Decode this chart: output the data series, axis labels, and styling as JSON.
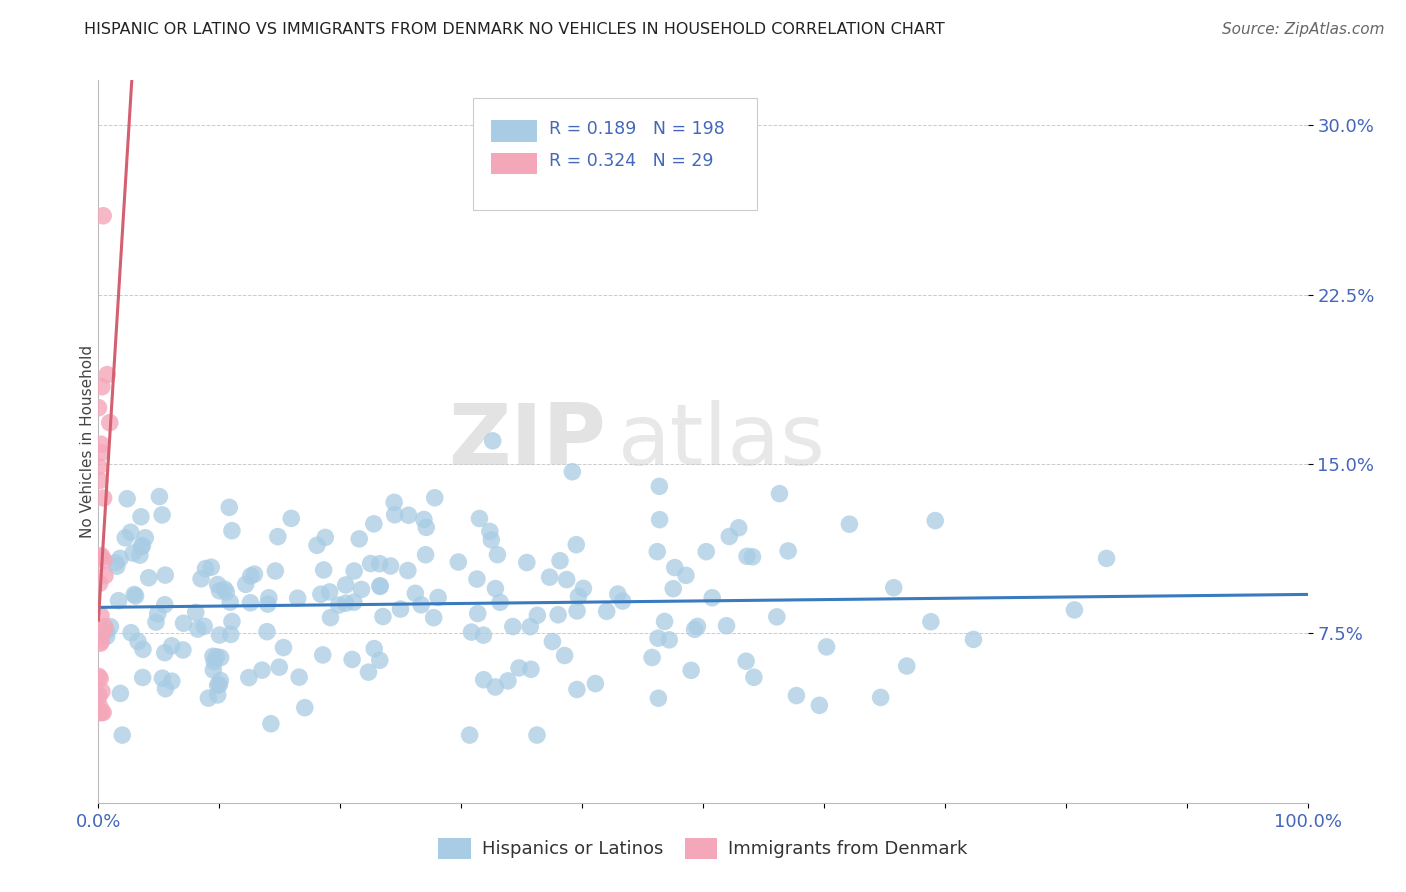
{
  "title": "HISPANIC OR LATINO VS IMMIGRANTS FROM DENMARK NO VEHICLES IN HOUSEHOLD CORRELATION CHART",
  "source": "Source: ZipAtlas.com",
  "ylabel": "No Vehicles in Household",
  "xlim": [
    0,
    1.0
  ],
  "ylim": [
    0,
    0.32
  ],
  "blue_R": 0.189,
  "blue_N": 198,
  "pink_R": 0.324,
  "pink_N": 29,
  "blue_color": "#a8cce4",
  "pink_color": "#f4a7b9",
  "blue_line_color": "#3a7bbf",
  "pink_line_color": "#d45f70",
  "legend_label_blue": "Hispanics or Latinos",
  "legend_label_pink": "Immigrants from Denmark",
  "watermark_zip": "ZIP",
  "watermark_atlas": "atlas",
  "grid_color": "#cccccc",
  "tick_color": "#4466bb",
  "title_color": "#222222",
  "source_color": "#666666"
}
